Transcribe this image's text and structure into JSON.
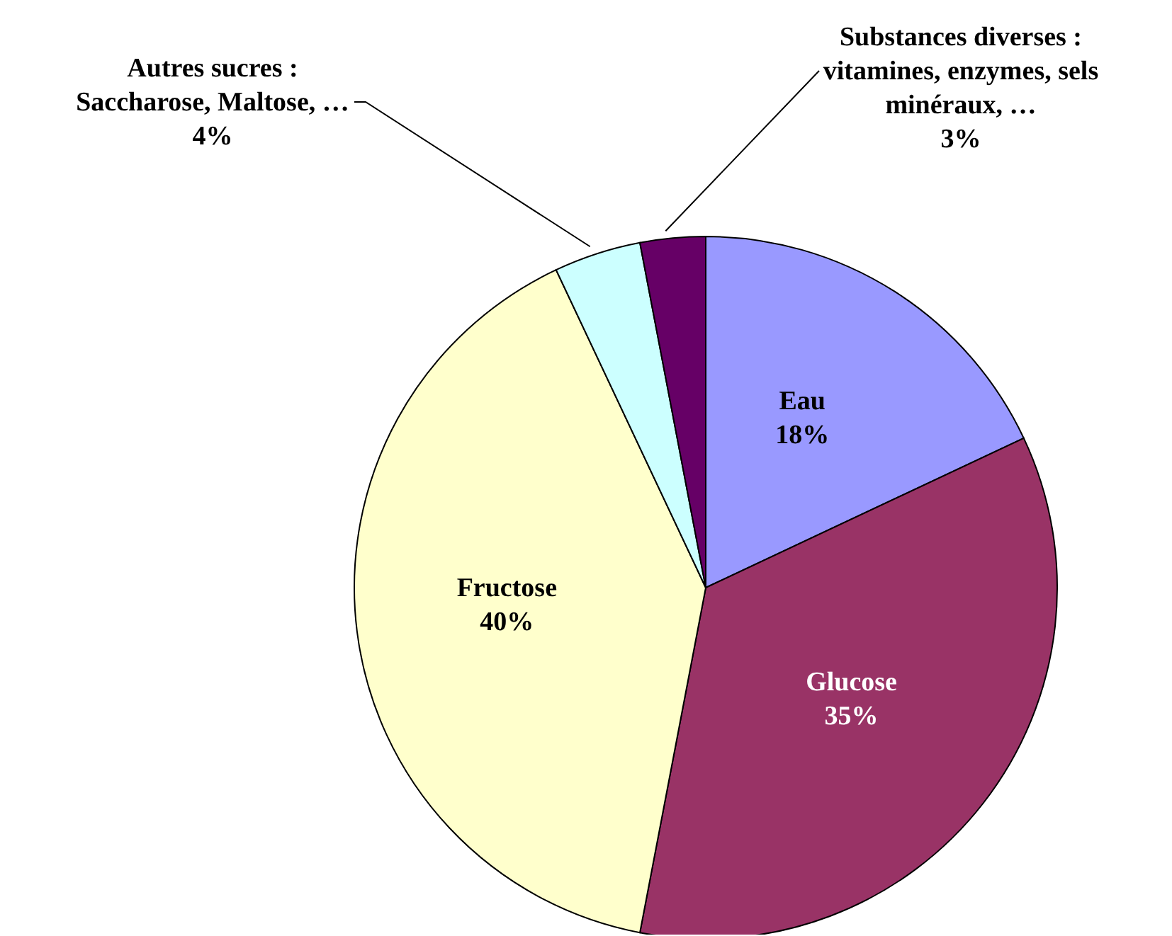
{
  "chart_data": {
    "type": "pie",
    "categories": [
      "Eau",
      "Glucose",
      "Fructose",
      "Autres sucres :\nSaccharose, Maltose, …",
      "Substances diverses :\nvitamines, enzymes, sels\nminéraux, …"
    ],
    "values": [
      18,
      35,
      40,
      4,
      3
    ],
    "value_labels": [
      "18%",
      "35%",
      "40%",
      "4%",
      "3%"
    ],
    "colors": [
      "#9999ff",
      "#993366",
      "#ffffcc",
      "#ccffff",
      "#660066"
    ],
    "legend": false
  }
}
